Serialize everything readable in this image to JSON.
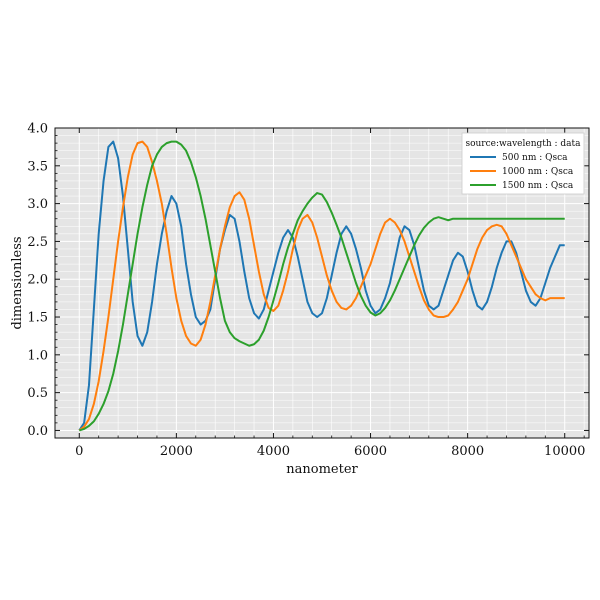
{
  "chart_data": {
    "type": "line",
    "title": "",
    "xlabel": "nanometer",
    "ylabel": "dimensionless",
    "xlim": [
      -500,
      10500
    ],
    "ylim": [
      -0.1,
      4.0
    ],
    "xticks": [
      0,
      2000,
      4000,
      6000,
      8000,
      10000
    ],
    "yticks": [
      0.0,
      0.5,
      1.0,
      1.5,
      2.0,
      2.5,
      3.0,
      3.5,
      4.0
    ],
    "xtick_labels": [
      "0",
      "2000",
      "4000",
      "6000",
      "8000",
      "10000"
    ],
    "ytick_labels": [
      "0.0",
      "0.5",
      "1.0",
      "1.5",
      "2.0",
      "2.5",
      "3.0",
      "3.5",
      "4.0"
    ],
    "grid": true,
    "legend": {
      "title": "source:wavelength : data",
      "placement": "top-right"
    },
    "series": [
      {
        "name": "500 nm : Qsca",
        "color": "#1f77b4",
        "x": [
          0,
          100,
          200,
          300,
          400,
          500,
          600,
          700,
          800,
          900,
          1000,
          1100,
          1200,
          1300,
          1400,
          1500,
          1600,
          1700,
          1800,
          1900,
          2000,
          2100,
          2200,
          2300,
          2400,
          2500,
          2600,
          2700,
          2800,
          2900,
          3000,
          3100,
          3200,
          3300,
          3400,
          3500,
          3600,
          3700,
          3800,
          3900,
          4000,
          4100,
          4200,
          4300,
          4400,
          4500,
          4600,
          4700,
          4800,
          4900,
          5000,
          5100,
          5200,
          5300,
          5400,
          5500,
          5600,
          5700,
          5800,
          5900,
          6000,
          6100,
          6200,
          6300,
          6400,
          6500,
          6600,
          6700,
          6800,
          6900,
          7000,
          7100,
          7200,
          7300,
          7400,
          7500,
          7600,
          7700,
          7800,
          7900,
          8000,
          8100,
          8200,
          8300,
          8400,
          8500,
          8600,
          8700,
          8800,
          8900,
          9000,
          9100,
          9200,
          9300,
          9400,
          9500,
          9600,
          9700,
          9800,
          9900,
          10000
        ],
        "values": [
          0.0,
          0.1,
          0.6,
          1.6,
          2.6,
          3.3,
          3.75,
          3.82,
          3.6,
          3.1,
          2.4,
          1.7,
          1.25,
          1.12,
          1.3,
          1.7,
          2.2,
          2.6,
          2.9,
          3.1,
          3.0,
          2.7,
          2.2,
          1.8,
          1.5,
          1.4,
          1.45,
          1.6,
          2.0,
          2.4,
          2.65,
          2.85,
          2.8,
          2.5,
          2.1,
          1.75,
          1.55,
          1.48,
          1.6,
          1.85,
          2.1,
          2.35,
          2.55,
          2.65,
          2.55,
          2.3,
          2.0,
          1.7,
          1.55,
          1.5,
          1.55,
          1.75,
          2.05,
          2.35,
          2.6,
          2.7,
          2.6,
          2.4,
          2.15,
          1.85,
          1.65,
          1.55,
          1.6,
          1.75,
          1.95,
          2.25,
          2.55,
          2.7,
          2.65,
          2.45,
          2.15,
          1.85,
          1.65,
          1.6,
          1.65,
          1.85,
          2.05,
          2.25,
          2.35,
          2.3,
          2.1,
          1.85,
          1.65,
          1.6,
          1.7,
          1.9,
          2.15,
          2.35,
          2.5,
          2.5,
          2.35,
          2.1,
          1.85,
          1.7,
          1.65,
          1.75,
          1.95,
          2.15,
          2.3,
          2.45,
          2.45
        ]
      },
      {
        "name": "1000 nm : Qsca",
        "color": "#ff7f0e",
        "x": [
          0,
          100,
          200,
          300,
          400,
          500,
          600,
          700,
          800,
          900,
          1000,
          1100,
          1200,
          1300,
          1400,
          1500,
          1600,
          1700,
          1800,
          1900,
          2000,
          2100,
          2200,
          2300,
          2400,
          2500,
          2600,
          2700,
          2800,
          2900,
          3000,
          3100,
          3200,
          3300,
          3400,
          3500,
          3600,
          3700,
          3800,
          3900,
          4000,
          4100,
          4200,
          4300,
          4400,
          4500,
          4600,
          4700,
          4800,
          4900,
          5000,
          5100,
          5200,
          5300,
          5400,
          5500,
          5600,
          5700,
          5800,
          5900,
          6000,
          6100,
          6200,
          6300,
          6400,
          6500,
          6600,
          6700,
          6800,
          6900,
          7000,
          7100,
          7200,
          7300,
          7400,
          7500,
          7600,
          7700,
          7800,
          7900,
          8000,
          8100,
          8200,
          8300,
          8400,
          8500,
          8600,
          8700,
          8800,
          8900,
          9000,
          9100,
          9200,
          9300,
          9400,
          9500,
          9600,
          9700,
          9800,
          9900,
          10000
        ],
        "values": [
          0.0,
          0.05,
          0.15,
          0.35,
          0.65,
          1.05,
          1.5,
          2.0,
          2.5,
          2.95,
          3.35,
          3.65,
          3.8,
          3.82,
          3.75,
          3.55,
          3.3,
          3.0,
          2.6,
          2.15,
          1.75,
          1.45,
          1.25,
          1.15,
          1.12,
          1.2,
          1.4,
          1.7,
          2.05,
          2.4,
          2.7,
          2.95,
          3.1,
          3.15,
          3.05,
          2.8,
          2.45,
          2.1,
          1.8,
          1.62,
          1.58,
          1.65,
          1.85,
          2.1,
          2.4,
          2.65,
          2.8,
          2.85,
          2.75,
          2.55,
          2.3,
          2.05,
          1.85,
          1.7,
          1.62,
          1.6,
          1.65,
          1.75,
          1.9,
          2.05,
          2.2,
          2.4,
          2.6,
          2.75,
          2.8,
          2.75,
          2.65,
          2.5,
          2.3,
          2.1,
          1.9,
          1.72,
          1.6,
          1.52,
          1.5,
          1.5,
          1.52,
          1.6,
          1.7,
          1.85,
          2.0,
          2.2,
          2.4,
          2.55,
          2.65,
          2.7,
          2.72,
          2.7,
          2.6,
          2.45,
          2.3,
          2.15,
          2.0,
          1.9,
          1.8,
          1.75,
          1.72,
          1.75,
          1.75,
          1.75,
          1.75
        ]
      },
      {
        "name": "1500 nm : Qsca",
        "color": "#2ca02c",
        "x": [
          0,
          100,
          200,
          300,
          400,
          500,
          600,
          700,
          800,
          900,
          1000,
          1100,
          1200,
          1300,
          1400,
          1500,
          1600,
          1700,
          1800,
          1900,
          2000,
          2100,
          2200,
          2300,
          2400,
          2500,
          2600,
          2700,
          2800,
          2900,
          3000,
          3100,
          3200,
          3300,
          3400,
          3500,
          3600,
          3700,
          3800,
          3900,
          4000,
          4100,
          4200,
          4300,
          4400,
          4500,
          4600,
          4700,
          4800,
          4900,
          5000,
          5100,
          5200,
          5300,
          5400,
          5500,
          5600,
          5700,
          5800,
          5900,
          6000,
          6100,
          6200,
          6300,
          6400,
          6500,
          6600,
          6700,
          6800,
          6900,
          7000,
          7100,
          7200,
          7300,
          7400,
          7500,
          7600,
          7700,
          7800,
          7900,
          8000,
          8100,
          8200,
          8300,
          8400,
          8500,
          8600,
          8700,
          8800,
          8900,
          9000,
          9100,
          9200,
          9300,
          9400,
          9500,
          9600,
          9700,
          9800,
          9900,
          10000
        ],
        "values": [
          0.0,
          0.02,
          0.06,
          0.12,
          0.22,
          0.35,
          0.52,
          0.75,
          1.05,
          1.4,
          1.8,
          2.2,
          2.6,
          2.95,
          3.25,
          3.5,
          3.65,
          3.75,
          3.8,
          3.82,
          3.82,
          3.78,
          3.7,
          3.55,
          3.35,
          3.1,
          2.8,
          2.45,
          2.1,
          1.75,
          1.45,
          1.3,
          1.22,
          1.18,
          1.15,
          1.12,
          1.14,
          1.2,
          1.32,
          1.5,
          1.72,
          1.95,
          2.2,
          2.42,
          2.6,
          2.78,
          2.9,
          3.0,
          3.08,
          3.14,
          3.12,
          3.02,
          2.88,
          2.72,
          2.55,
          2.35,
          2.15,
          1.95,
          1.78,
          1.65,
          1.56,
          1.52,
          1.55,
          1.62,
          1.72,
          1.85,
          2.0,
          2.15,
          2.3,
          2.45,
          2.58,
          2.68,
          2.75,
          2.8,
          2.82,
          2.8,
          2.78,
          2.8,
          2.8,
          2.8,
          2.8,
          2.8,
          2.8,
          2.8,
          2.8,
          2.8,
          2.8,
          2.8,
          2.8,
          2.8,
          2.8,
          2.8,
          2.8,
          2.8,
          2.8,
          2.8,
          2.8,
          2.8,
          2.8,
          2.8,
          2.8
        ]
      }
    ]
  }
}
